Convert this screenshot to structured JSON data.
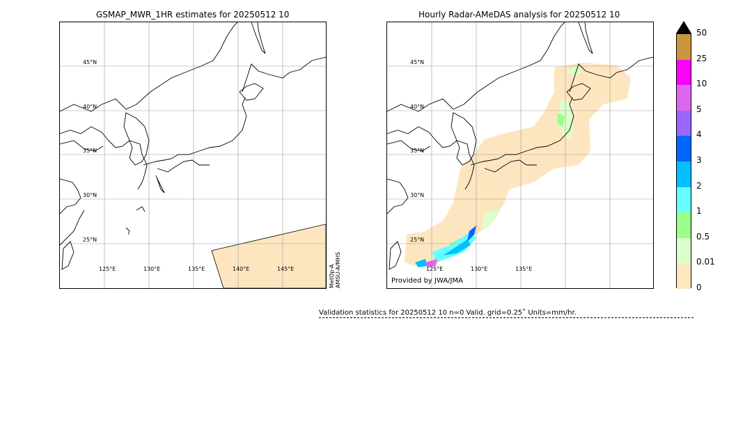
{
  "left_panel": {
    "title": "GSMAP_MWR_1HR estimates for 20250512 10",
    "lat_labels": [
      "45°N",
      "40°N",
      "35°N",
      "30°N",
      "25°N"
    ],
    "lon_labels": [
      "125°E",
      "130°E",
      "135°E",
      "140°E",
      "145°E"
    ],
    "satellite_line1": "MetOp-A",
    "satellite_line2": "AMSU-A/MHS"
  },
  "right_panel": {
    "title": "Hourly Radar-AMeDAS analysis for 20250512 10",
    "lat_labels": [
      "45°N",
      "40°N",
      "35°N",
      "30°N",
      "25°N"
    ],
    "lon_labels": [
      "125°E",
      "130°E",
      "135°E"
    ],
    "credit": "Provided by JWA/JMA"
  },
  "colorbar": {
    "labels": [
      "50",
      "25",
      "10",
      "5",
      "4",
      "3",
      "2",
      "1",
      "0.5",
      "0.01",
      "0"
    ],
    "colors": [
      "#c8963c",
      "#ff00ff",
      "#dd66ee",
      "#9966ff",
      "#0066ff",
      "#00c0ff",
      "#66ffff",
      "#99ff88",
      "#ddffcc",
      "#ffe8c0"
    ],
    "extend_color": "#000000"
  },
  "validation": {
    "text": "Validation statistics for 20250512 10  n=0 Valid. grid=0.25˚ Units=mm/hr."
  }
}
